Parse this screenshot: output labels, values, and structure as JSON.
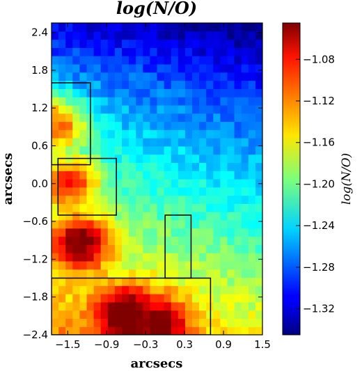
{
  "chart_data": {
    "type": "heatmap",
    "title": "log(N/O)",
    "xlabel": "arcsecs",
    "ylabel": "arcsecs",
    "xlim": [
      -1.75,
      1.5
    ],
    "ylim": [
      -2.4,
      2.55
    ],
    "x_ticks": [
      "-1.5",
      "-0.9",
      "-0.3",
      "0.3",
      "0.9",
      "1.5"
    ],
    "y_ticks": [
      "2.4",
      "1.8",
      "1.2",
      "0.6",
      "0.0",
      "-0.6",
      "-1.2",
      "-1.8",
      "-2.4"
    ],
    "colorbar": {
      "label": "log(N/O)",
      "range": [
        -1.345,
        -1.045
      ],
      "ticks": [
        "-1.08",
        "-1.12",
        "-1.16",
        "-1.20",
        "-1.24",
        "-1.28",
        "-1.32"
      ],
      "colormap": "jet"
    },
    "grid": {
      "nx": 30,
      "ny": 38,
      "hot_spots": [
        {
          "x": -1.65,
          "y": 0.95,
          "value": -1.105
        },
        {
          "x": -1.45,
          "y": 0.05,
          "value": -1.12
        },
        {
          "x": -1.3,
          "y": -0.9,
          "value": -1.095
        },
        {
          "x": -0.55,
          "y": -2.05,
          "value": -1.1
        },
        {
          "x": -0.1,
          "y": -2.2,
          "value": -1.115
        }
      ]
    },
    "regions": [
      {
        "x0": -1.75,
        "x1": -1.15,
        "y0": 0.3,
        "y1": 1.6
      },
      {
        "x0": -1.65,
        "x1": -0.75,
        "y0": -0.5,
        "y1": 0.4
      },
      {
        "x0": 0.0,
        "x1": 0.4,
        "y0": -1.5,
        "y1": -0.5
      },
      {
        "x0": -1.75,
        "x1": 0.7,
        "y0": -2.4,
        "y1": -1.5
      }
    ]
  }
}
